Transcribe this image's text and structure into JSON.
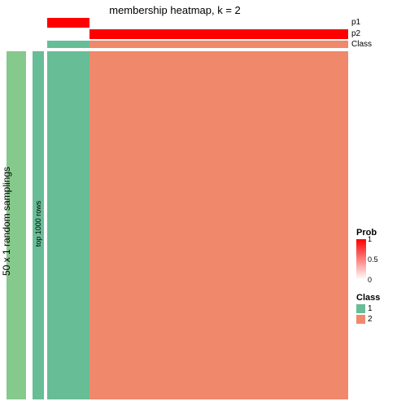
{
  "title": "membership heatmap, k = 2",
  "left_outer": {
    "label": "50 x 1 random samplings",
    "color": "#86c98c"
  },
  "left_inner": {
    "label": "top 1000 rows",
    "color": "#67bd95"
  },
  "top_rows": {
    "p1": {
      "label": "p1",
      "segments": [
        {
          "color": "#fe0000",
          "fraction": 0.14
        },
        {
          "color": "#ffffff",
          "fraction": 0.86
        }
      ]
    },
    "p2": {
      "label": "p2",
      "segments": [
        {
          "color": "#ffffff",
          "fraction": 0.14
        },
        {
          "color": "#fe0000",
          "fraction": 0.86
        }
      ]
    },
    "class": {
      "label": "Class",
      "segments": [
        {
          "color": "#67bd95",
          "fraction": 0.14
        },
        {
          "color": "#f0896b",
          "fraction": 0.86
        }
      ]
    }
  },
  "main_columns": [
    {
      "color": "#67bd95",
      "fraction": 0.14
    },
    {
      "color": "#f0896b",
      "fraction": 0.86
    }
  ],
  "legend_prob": {
    "title": "Prob",
    "gradient_top_color": "#fe0000",
    "gradient_bottom_color": "#ffffff",
    "ticks": [
      {
        "label": "1",
        "pos": 0
      },
      {
        "label": "0.5",
        "pos": 0.5
      },
      {
        "label": "0",
        "pos": 1
      }
    ]
  },
  "legend_class": {
    "title": "Class",
    "items": [
      {
        "label": "1",
        "color": "#67bd95"
      },
      {
        "label": "2",
        "color": "#f0896b"
      }
    ]
  },
  "background_color": "#ffffff",
  "typography": {
    "title_fontsize": 13,
    "label_fontsize": 10
  }
}
